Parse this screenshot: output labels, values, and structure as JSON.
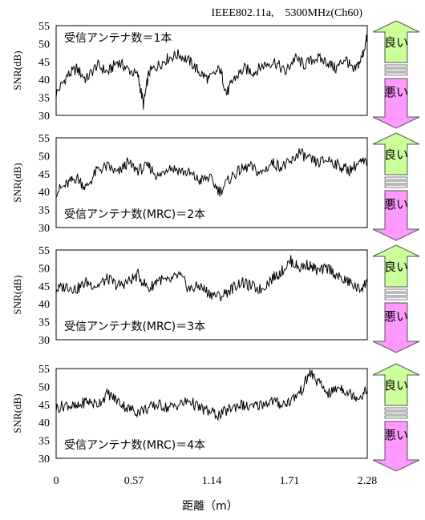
{
  "header": "IEEE802.11a,　5300MHz(Ch60)",
  "chart_data": [
    {
      "type": "line",
      "ylabel": "SNR(dB)",
      "ylim": [
        30,
        55
      ],
      "yticks": [
        "30",
        "35",
        "40",
        "45",
        "50",
        "55"
      ],
      "xlim": [
        0,
        2.28
      ],
      "annotation": "受信アンテナ数＝1本",
      "series": [
        {
          "x": [
            0,
            0.08,
            0.15,
            0.22,
            0.3,
            0.38,
            0.45,
            0.52,
            0.6,
            0.64,
            0.68,
            0.75,
            0.82,
            0.9,
            0.98,
            1.05,
            1.12,
            1.2,
            1.25,
            1.3,
            1.38,
            1.45,
            1.52,
            1.6,
            1.68,
            1.75,
            1.82,
            1.9,
            1.98,
            2.05,
            2.12,
            2.18,
            2.24,
            2.28
          ],
          "y": [
            36,
            41,
            43,
            40,
            44,
            42,
            45,
            43,
            41,
            33,
            42,
            44,
            46,
            47,
            45,
            42,
            40,
            43,
            36,
            40,
            43,
            42,
            44,
            45,
            42,
            46,
            44,
            46,
            45,
            43,
            46,
            42,
            46,
            52
          ]
        }
      ]
    },
    {
      "type": "line",
      "ylabel": "SNR(dB)",
      "ylim": [
        30,
        55
      ],
      "yticks": [
        "30",
        "35",
        "40",
        "45",
        "50",
        "55"
      ],
      "xlim": [
        0,
        2.28
      ],
      "annotation": "受信アンテナ数(MRC)＝2本",
      "series": [
        {
          "x": [
            0,
            0.08,
            0.15,
            0.22,
            0.3,
            0.38,
            0.45,
            0.52,
            0.6,
            0.68,
            0.75,
            0.82,
            0.9,
            0.98,
            1.05,
            1.12,
            1.2,
            1.28,
            1.35,
            1.42,
            1.5,
            1.58,
            1.65,
            1.72,
            1.78,
            1.85,
            1.92,
            2.0,
            2.08,
            2.15,
            2.22,
            2.28
          ],
          "y": [
            40,
            42,
            44,
            41,
            46,
            47,
            45,
            48,
            46,
            47,
            44,
            47,
            46,
            45,
            43,
            44,
            40,
            44,
            46,
            47,
            45,
            48,
            47,
            48,
            51,
            49,
            48,
            49,
            47,
            46,
            48,
            48
          ]
        }
      ]
    },
    {
      "type": "line",
      "ylabel": "SNR(dB)",
      "ylim": [
        30,
        55
      ],
      "yticks": [
        "30",
        "35",
        "40",
        "45",
        "50",
        "55"
      ],
      "xlim": [
        0,
        2.28
      ],
      "annotation": "受信アンテナ数(MRC)＝3本",
      "series": [
        {
          "x": [
            0,
            0.08,
            0.15,
            0.22,
            0.3,
            0.38,
            0.45,
            0.52,
            0.6,
            0.68,
            0.75,
            0.82,
            0.9,
            0.98,
            1.05,
            1.12,
            1.2,
            1.28,
            1.35,
            1.42,
            1.5,
            1.58,
            1.65,
            1.72,
            1.78,
            1.85,
            1.92,
            2.0,
            2.08,
            2.15,
            2.22,
            2.28
          ],
          "y": [
            44,
            45,
            44,
            46,
            45,
            47,
            45,
            46,
            48,
            44,
            47,
            46,
            48,
            44,
            45,
            43,
            42,
            44,
            46,
            45,
            44,
            47,
            49,
            52,
            50,
            51,
            49,
            50,
            47,
            46,
            44,
            46
          ]
        }
      ]
    },
    {
      "type": "line",
      "ylabel": "SNR(dB)",
      "ylim": [
        30,
        55
      ],
      "yticks": [
        "30",
        "35",
        "40",
        "45",
        "50",
        "55"
      ],
      "xlim": [
        0,
        2.28
      ],
      "xticks": [
        "0",
        "0.57",
        "1.14",
        "1.71",
        "2.28"
      ],
      "xlabel": "距離（m）",
      "annotation": "受信アンテナ数(MRC)＝4本",
      "series": [
        {
          "x": [
            0,
            0.08,
            0.15,
            0.22,
            0.3,
            0.38,
            0.45,
            0.52,
            0.6,
            0.68,
            0.75,
            0.82,
            0.9,
            0.98,
            1.05,
            1.12,
            1.2,
            1.28,
            1.35,
            1.42,
            1.5,
            1.58,
            1.65,
            1.72,
            1.8,
            1.86,
            1.92,
            2.0,
            2.08,
            2.15,
            2.22,
            2.28
          ],
          "y": [
            44,
            45,
            44,
            46,
            45,
            48,
            46,
            44,
            43,
            44,
            45,
            44,
            45,
            46,
            44,
            43,
            42,
            44,
            45,
            44,
            45,
            46,
            45,
            46,
            49,
            54,
            51,
            48,
            50,
            48,
            47,
            49
          ]
        }
      ]
    }
  ],
  "indicators": {
    "good": "良い",
    "bad": "悪い"
  },
  "colors": {
    "line": "#000000",
    "good_arrow": "#ccff99",
    "bad_arrow": "#ff99ff",
    "arrow_stroke": "#555555",
    "frame": "#000000"
  }
}
